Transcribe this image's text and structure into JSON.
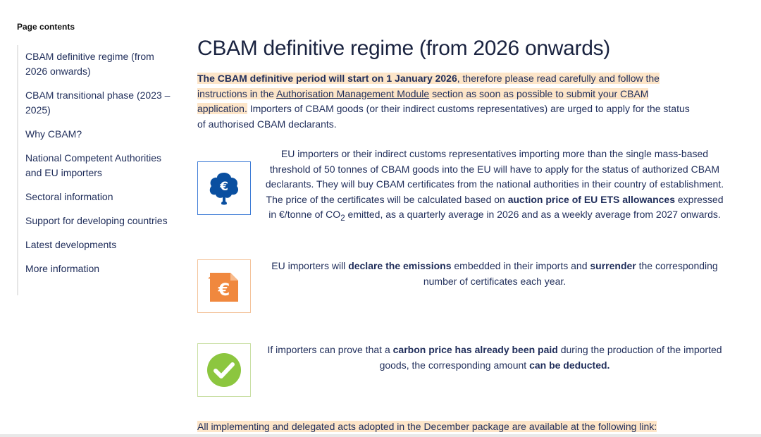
{
  "toc": {
    "title": "Page contents",
    "items": [
      "CBAM definitive regime (from 2026 onwards)",
      "CBAM transitional phase (2023 – 2025)",
      "Why CBAM?",
      "National Competent Authorities and EU importers",
      "Sectoral information",
      "Support for developing countries",
      "Latest developments",
      "More information"
    ]
  },
  "main": {
    "title": "CBAM definitive regime (from 2026 onwards)",
    "intro": {
      "bold": "The CBAM definitive period will start on 1 January 2026",
      "part1": ", therefore please read carefully and follow the instructions in the ",
      "link": "Authorisation Management Module",
      "part2": " section as soon as possible to submit your CBAM application.",
      "part3": " Importers of CBAM goods (or their indirect customs representatives) are urged to apply for the status of authorised CBAM declarants."
    },
    "feature1": {
      "t1": "EU importers or their indirect customs representatives importing more than the single mass-based threshold of 50 tonnes of CBAM goods into the EU will have to apply for the status of authorized CBAM declarants. They will buy CBAM certificates from the national authorities in their country of establishment. The price of the certificates will be calculated based on ",
      "b1": "auction price of EU ETS allowances",
      "t2": " expressed in €/tonne of CO",
      "sub": "2",
      "t3": " emitted, as a quarterly average in 2026 and as a weekly average from 2027 onwards."
    },
    "feature2": {
      "t1": "EU importers will ",
      "b1": "declare the emissions",
      "t2": " embedded in their imports and ",
      "b2": "surrender",
      "t3": " the corresponding number of certificates each year."
    },
    "feature3": {
      "t1": "If importers can prove that a ",
      "b1": "carbon price has already been paid",
      "t2": " during the production of the imported goods, the corresponding amount ",
      "b2": "can be deducted."
    },
    "bottom": "All implementing and delegated acts adopted in the December package are available at the following link:"
  },
  "colors": {
    "highlight": "#fde5c8",
    "blue_icon": "#0a4fa0",
    "orange_icon": "#f0883e",
    "green_icon": "#8cc63f"
  },
  "icons": {
    "feature1": "euro-cloud-icon",
    "feature2": "euro-document-icon",
    "feature3": "checkmark-icon"
  }
}
